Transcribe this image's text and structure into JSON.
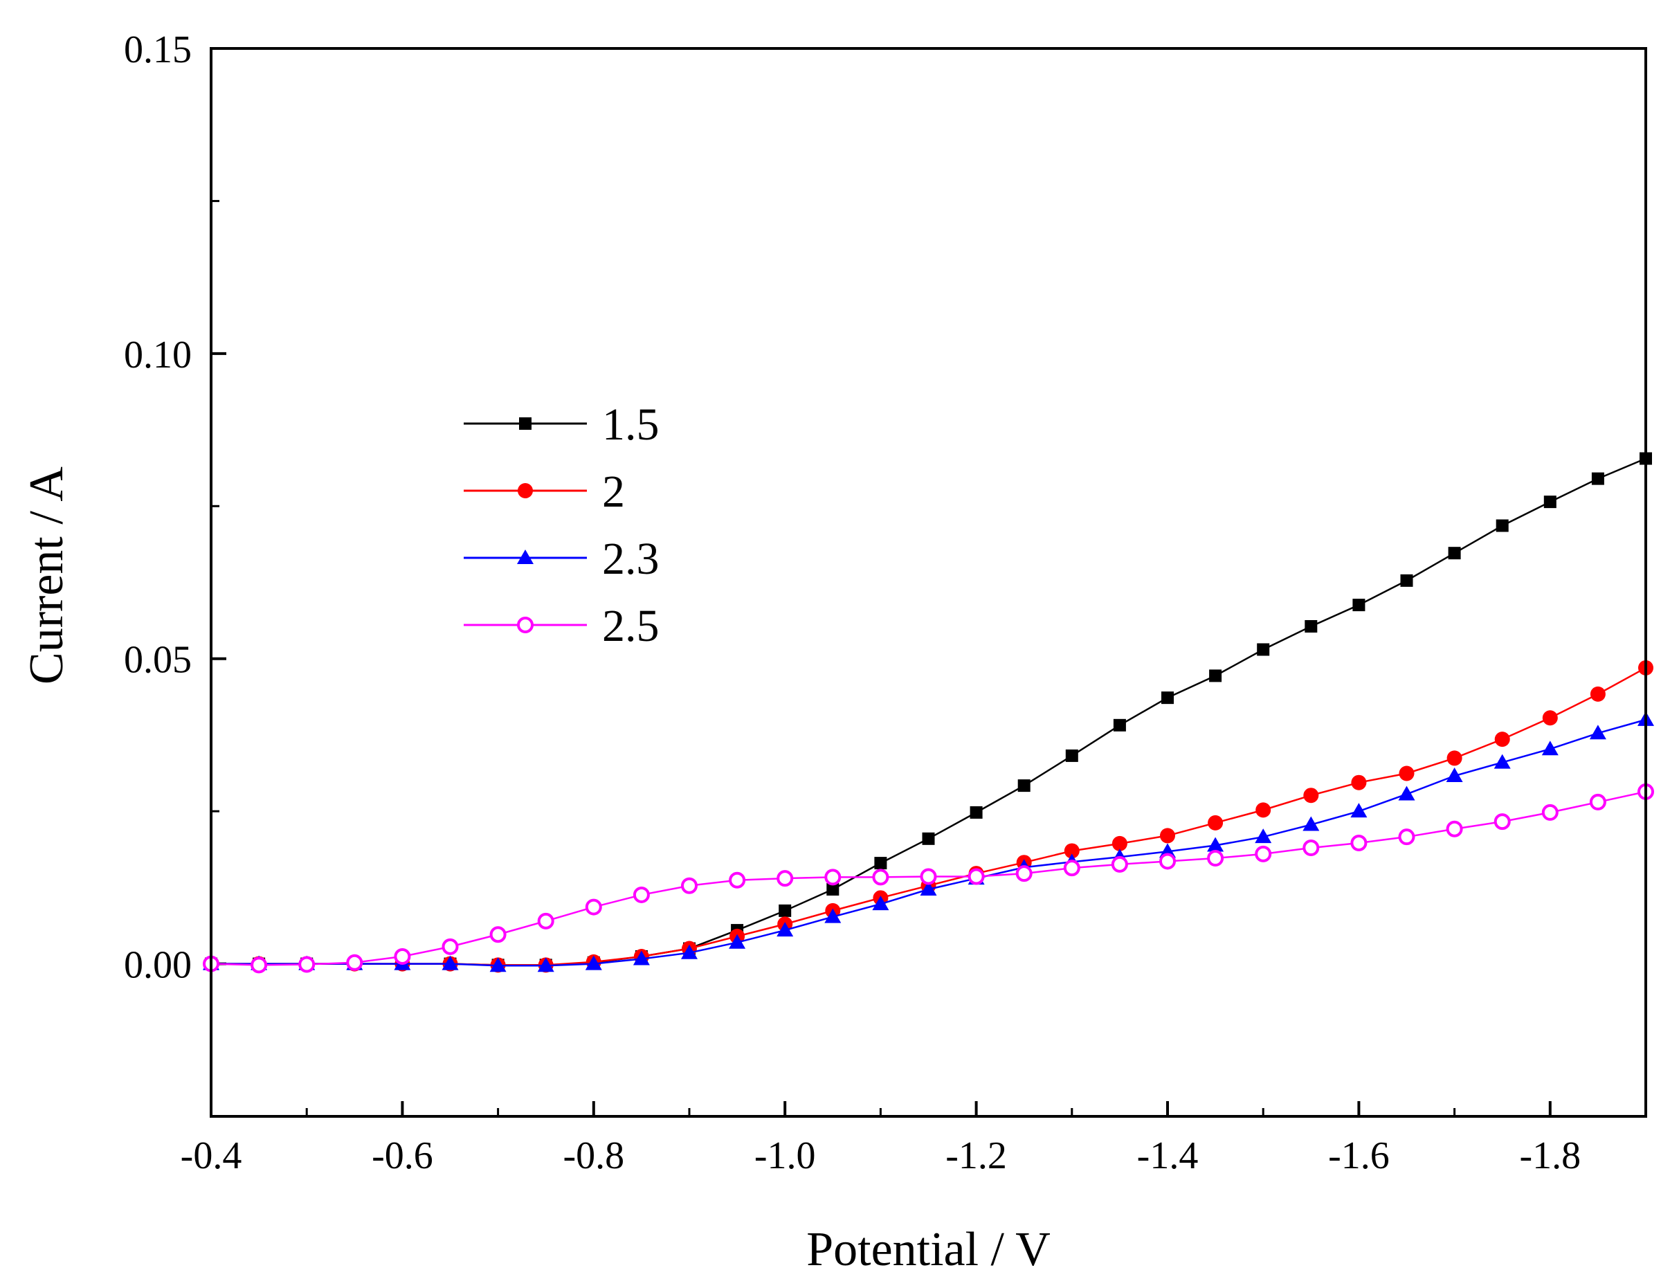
{
  "chart_data": {
    "type": "line",
    "title": "",
    "xlabel": "Potential / V",
    "ylabel": "Current / A",
    "xlim": [
      -0.4,
      -1.9
    ],
    "ylim": [
      -0.025,
      0.15
    ],
    "xticks": [
      -0.4,
      -0.6,
      -0.8,
      -1.0,
      -1.2,
      -1.4,
      -1.6,
      -1.8
    ],
    "xtick_labels": [
      "-0.4",
      "-0.6",
      "-0.8",
      "-1.0",
      "-1.2",
      "-1.4",
      "-1.6",
      "-1.8"
    ],
    "yticks": [
      0.0,
      0.05,
      0.1,
      0.15
    ],
    "ytick_labels": [
      "0.00",
      "0.05",
      "0.10",
      "0.15"
    ],
    "legend_position": "upper-left-center",
    "x": [
      -0.4,
      -0.45,
      -0.5,
      -0.55,
      -0.6,
      -0.65,
      -0.7,
      -0.75,
      -0.8,
      -0.85,
      -0.9,
      -0.95,
      -1.0,
      -1.05,
      -1.1,
      -1.15,
      -1.2,
      -1.25,
      -1.3,
      -1.35,
      -1.4,
      -1.45,
      -1.5,
      -1.55,
      -1.6,
      -1.65,
      -1.7,
      -1.75,
      -1.8,
      -1.85,
      -1.9
    ],
    "series": [
      {
        "name": "1.5",
        "color": "#000000",
        "marker": "square",
        "values": [
          0.0,
          0.0,
          0.0,
          0.0,
          0.0,
          0.0,
          -0.0002,
          -0.0002,
          0.0002,
          0.0012,
          0.0025,
          0.0055,
          0.0087,
          0.0122,
          0.0165,
          0.0205,
          0.0248,
          0.0292,
          0.0341,
          0.0391,
          0.0436,
          0.0472,
          0.0515,
          0.0553,
          0.0588,
          0.0628,
          0.0673,
          0.0718,
          0.0757,
          0.0795,
          0.0828
        ]
      },
      {
        "name": "2",
        "color": "#ff0000",
        "marker": "circle",
        "values": [
          0.0,
          0.0,
          0.0,
          0.0,
          0.0,
          0.0,
          -0.0002,
          -0.0002,
          0.0003,
          0.0012,
          0.0025,
          0.0045,
          0.0065,
          0.0087,
          0.0108,
          0.0128,
          0.0148,
          0.0166,
          0.0185,
          0.0197,
          0.021,
          0.0231,
          0.0252,
          0.0276,
          0.0297,
          0.0312,
          0.0337,
          0.0368,
          0.0403,
          0.0442,
          0.0485
        ]
      },
      {
        "name": "2.3",
        "color": "#0000ff",
        "marker": "triangle",
        "values": [
          0.0,
          0.0,
          0.0,
          0.0,
          0.0,
          0.0,
          -0.0003,
          -0.0003,
          0.0,
          0.0008,
          0.0018,
          0.0035,
          0.0055,
          0.0077,
          0.0098,
          0.0122,
          0.014,
          0.0158,
          0.0167,
          0.0175,
          0.0184,
          0.0194,
          0.0208,
          0.0228,
          0.025,
          0.0278,
          0.0308,
          0.033,
          0.0352,
          0.0378,
          0.04
        ]
      },
      {
        "name": "2.5",
        "color": "#ff00ff",
        "marker": "open-circle",
        "values": [
          0.0,
          -0.0002,
          -0.0001,
          0.0002,
          0.0012,
          0.0028,
          0.0048,
          0.007,
          0.0093,
          0.0113,
          0.0128,
          0.0137,
          0.014,
          0.0142,
          0.0142,
          0.0143,
          0.0143,
          0.0148,
          0.0157,
          0.0163,
          0.0168,
          0.0173,
          0.018,
          0.019,
          0.0198,
          0.0208,
          0.0221,
          0.0233,
          0.0248,
          0.0265,
          0.0282
        ]
      }
    ]
  }
}
